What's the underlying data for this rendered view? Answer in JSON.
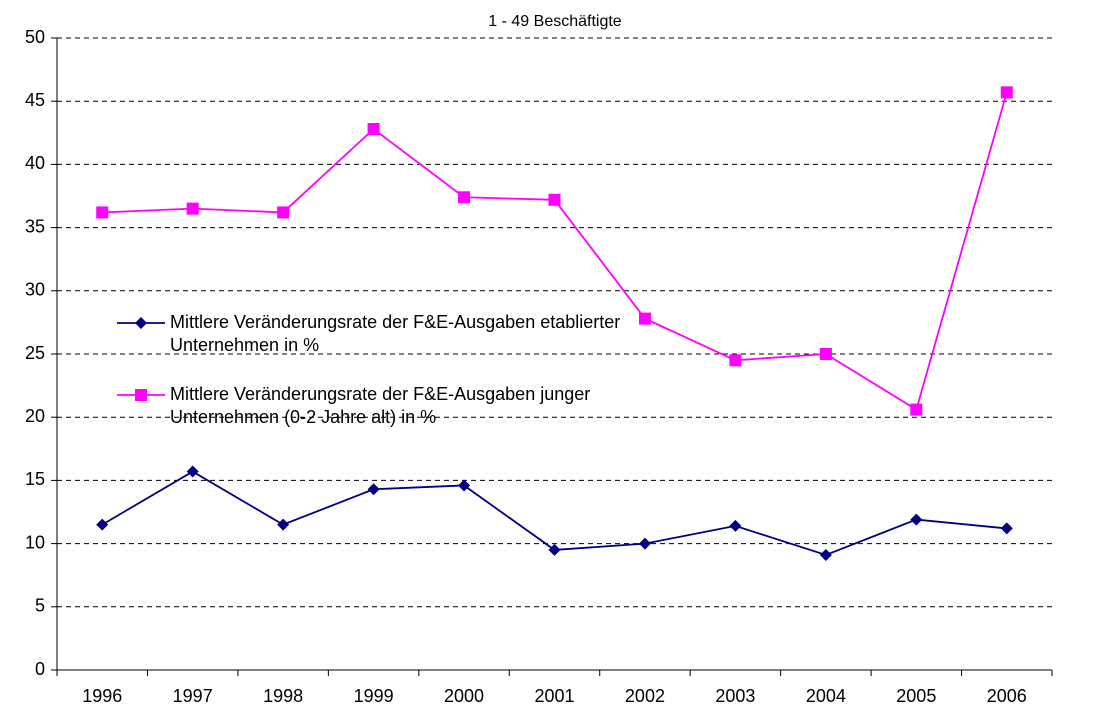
{
  "chart_data": {
    "type": "line",
    "title": "1 - 49 Beschäftigte",
    "categories": [
      "1996",
      "1997",
      "1998",
      "1999",
      "2000",
      "2001",
      "2002",
      "2003",
      "2004",
      "2005",
      "2006"
    ],
    "series": [
      {
        "name": "Mittlere Veränderungsrate der F&E-Ausgaben etablierter Unternehmen in %",
        "color": "#000080",
        "marker": "diamond",
        "values": [
          11.5,
          15.7,
          11.5,
          14.3,
          14.6,
          9.5,
          10.0,
          11.4,
          9.1,
          11.9,
          11.2
        ]
      },
      {
        "name": "Mittlere Veränderungsrate der F&E-Ausgaben junger Unternehmen (0-2 Jahre alt) in %",
        "color": "#ff00ff",
        "marker": "square",
        "values": [
          36.2,
          36.5,
          36.2,
          42.8,
          37.4,
          37.2,
          27.8,
          24.5,
          25.0,
          20.6,
          45.7
        ]
      }
    ],
    "ylim": [
      0,
      50
    ],
    "yticks": [
      0,
      5,
      10,
      15,
      20,
      25,
      30,
      35,
      40,
      45,
      50
    ],
    "grid": true,
    "legend": "left"
  }
}
